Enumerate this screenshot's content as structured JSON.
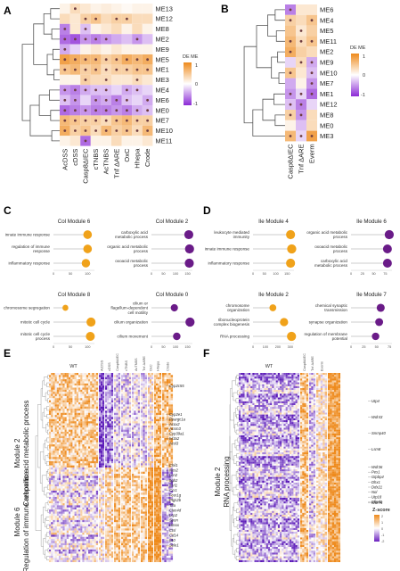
{
  "colors": {
    "low": "#8c2bd6",
    "mid": "#ffffff",
    "high": "#ee8a1c",
    "dot": "#6e3c40",
    "bubble_orange": "#f0a21a",
    "bubble_purple": "#6a1b88"
  },
  "panels": {
    "A": {
      "letter": "A",
      "legend": {
        "title": "DE ME",
        "ticks": [
          "1",
          "0",
          "-1"
        ]
      },
      "rows": [
        "ME13",
        "ME12",
        "ME8",
        "ME2",
        "ME9",
        "ME5",
        "ME1",
        "ME3",
        "ME4",
        "ME6",
        "ME0",
        "ME7",
        "ME10",
        "ME11"
      ],
      "cols": [
        "AcDSS",
        "cDSS",
        "Casp8ΔIEC",
        "cTNBS",
        "AcTNBS",
        "Tnf ΔARE",
        "OxC",
        "Hhepa",
        "Crode"
      ],
      "values": [
        [
          0.1,
          0.3,
          0.2,
          0.1,
          0.15,
          0.1,
          0.05,
          0.1,
          0.1
        ],
        [
          0.3,
          0.2,
          0.4,
          0.5,
          0.3,
          0.4,
          0.4,
          0.3,
          0.3
        ],
        [
          -0.6,
          0.2,
          -0.3,
          0.1,
          0.2,
          0.3,
          0.1,
          0.3,
          0.1
        ],
        [
          -0.7,
          -0.8,
          -0.5,
          -0.6,
          -0.5,
          -0.4,
          -0.3,
          -0.5,
          -0.3
        ],
        [
          -0.4,
          -0.2,
          0.1,
          0.2,
          0.1,
          0.2,
          0.1,
          0.1,
          0.1
        ],
        [
          0.8,
          0.7,
          0.6,
          0.6,
          0.4,
          0.5,
          0.7,
          0.6,
          0.7
        ],
        [
          0.5,
          0.6,
          0.4,
          0.5,
          0.3,
          0.4,
          0.4,
          0.5,
          0.5
        ],
        [
          0.1,
          0.1,
          0.4,
          0.3,
          0.3,
          0.2,
          0.2,
          0.3,
          0.2
        ],
        [
          -0.5,
          -0.6,
          -0.4,
          -0.3,
          -0.3,
          -0.2,
          -0.4,
          -0.3,
          -0.2
        ],
        [
          -0.3,
          -0.5,
          -0.2,
          -0.5,
          -0.4,
          -0.6,
          -0.3,
          -0.2,
          -0.4
        ],
        [
          -0.7,
          -0.6,
          -0.5,
          -0.6,
          -0.6,
          -0.5,
          -0.6,
          -0.4,
          -0.3
        ],
        [
          0.6,
          0.5,
          0.4,
          0.4,
          0.3,
          0.5,
          0.6,
          0.4,
          0.4
        ],
        [
          0.7,
          0.4,
          0.5,
          0.3,
          0.6,
          0.4,
          0.5,
          0.3,
          0.6
        ],
        [
          0.1,
          0.2,
          -0.7,
          0.1,
          0.1,
          0.3,
          0.1,
          0.1,
          0.2
        ]
      ],
      "dots": [
        [
          0,
          1,
          0,
          0,
          0,
          0,
          0,
          0,
          0
        ],
        [
          0,
          0,
          1,
          1,
          0,
          1,
          1,
          0,
          0
        ],
        [
          1,
          0,
          1,
          0,
          0,
          0,
          0,
          0,
          0
        ],
        [
          1,
          1,
          1,
          1,
          1,
          0,
          0,
          1,
          0
        ],
        [
          1,
          0,
          0,
          0,
          0,
          0,
          0,
          0,
          0
        ],
        [
          1,
          1,
          1,
          1,
          1,
          1,
          1,
          1,
          1
        ],
        [
          1,
          1,
          1,
          1,
          1,
          1,
          1,
          1,
          1
        ],
        [
          0,
          0,
          1,
          0,
          1,
          0,
          0,
          1,
          0
        ],
        [
          1,
          1,
          1,
          1,
          1,
          0,
          1,
          1,
          0
        ],
        [
          1,
          1,
          0,
          1,
          1,
          1,
          1,
          0,
          1
        ],
        [
          1,
          1,
          1,
          1,
          1,
          1,
          1,
          1,
          1
        ],
        [
          1,
          1,
          1,
          1,
          1,
          1,
          1,
          1,
          1
        ],
        [
          1,
          1,
          1,
          1,
          1,
          1,
          1,
          1,
          1
        ],
        [
          0,
          0,
          1,
          0,
          0,
          0,
          0,
          0,
          0
        ]
      ]
    },
    "B": {
      "letter": "B",
      "legend": {
        "title": "DE ME",
        "ticks": [
          "1",
          "0",
          "-1"
        ]
      },
      "rows": [
        "ME6",
        "ME4",
        "ME5",
        "ME11",
        "ME2",
        "ME9",
        "ME10",
        "ME7",
        "ME1",
        "ME12",
        "ME8",
        "ME0",
        "ME3"
      ],
      "cols": [
        "Casp8ΔIEC",
        "Tnf ΔARE",
        "Everm"
      ],
      "values": [
        [
          -0.6,
          0.2,
          0.2
        ],
        [
          0.4,
          0.3,
          0.5
        ],
        [
          0.5,
          0.2,
          0.4
        ],
        [
          0.6,
          0.3,
          0.5
        ],
        [
          0.7,
          0.4,
          0.3
        ],
        [
          -0.2,
          0.3,
          -0.4
        ],
        [
          0.5,
          0.2,
          -0.3
        ],
        [
          -0.4,
          0.1,
          -0.5
        ],
        [
          -0.5,
          -0.2,
          -0.7
        ],
        [
          -0.3,
          -0.6,
          -0.2
        ],
        [
          0.4,
          -0.5,
          0.3
        ],
        [
          0.1,
          -0.3,
          0.3
        ],
        [
          0.6,
          -0.2,
          0.8
        ]
      ],
      "dots": [
        [
          1,
          0,
          0
        ],
        [
          1,
          0,
          1
        ],
        [
          0,
          1,
          0
        ],
        [
          1,
          1,
          1
        ],
        [
          1,
          0,
          0
        ],
        [
          0,
          1,
          1
        ],
        [
          1,
          0,
          1
        ],
        [
          0,
          0,
          1
        ],
        [
          1,
          1,
          1
        ],
        [
          1,
          1,
          0
        ],
        [
          1,
          1,
          0
        ],
        [
          0,
          0,
          0
        ],
        [
          1,
          1,
          1
        ]
      ]
    },
    "C": {
      "letter": "C",
      "modules": [
        {
          "title": "Col Module 6",
          "terms": [
            "innate immune response",
            "regulation of immune response",
            "inflammatory response"
          ],
          "values": [
            100,
            100,
            95
          ],
          "color": "orange",
          "ticks": [
            "0",
            "50",
            "100"
          ],
          "max": 120
        },
        {
          "title": "Col Module 2",
          "terms": [
            "carboxylic acid metabolic process",
            "organic acid metabolic process",
            "oxoacid metabolic process"
          ],
          "values": [
            155,
            158,
            157
          ],
          "color": "purple",
          "ticks": [
            "0",
            "50",
            "100",
            "150"
          ],
          "max": 170
        },
        {
          "title": "Col Module 8",
          "terms": [
            "chromosome segregation",
            "mitotic cell cycle",
            "mitotic cell cycle process"
          ],
          "values": [
            35,
            110,
            108
          ],
          "color": "orange",
          "ticks": [
            "0",
            "50",
            "100"
          ],
          "max": 120
        },
        {
          "title": "Col Module 0",
          "terms": [
            "cilium or flagellum-dependent cell motility",
            "cilium organization",
            "cilium movement"
          ],
          "values": [
            95,
            160,
            105
          ],
          "color": "purple",
          "ticks": [
            "0",
            "50",
            "100",
            "150"
          ],
          "max": 170
        }
      ]
    },
    "D": {
      "letter": "D",
      "modules": [
        {
          "title": "Ile Module 4",
          "terms": [
            "leukocyte mediated immunity",
            "innate immune response",
            "inflammatory response"
          ],
          "values": [
            165,
            170,
            165
          ],
          "color": "orange",
          "ticks": [
            "0",
            "50",
            "100",
            "150"
          ],
          "max": 180
        },
        {
          "title": "Ile Module 6",
          "terms": [
            "organic acid metabolic process",
            "oxoacid metabolic process",
            "carboxylic acid metabolic process"
          ],
          "values": [
            84,
            80,
            80
          ],
          "color": "purple",
          "ticks": [
            "0",
            "25",
            "50",
            "75"
          ],
          "max": 90
        },
        {
          "title": "Ile Module 2",
          "terms": [
            "chromosome organization",
            "ribonucleoprotein complex biogenesis",
            "RNA processing"
          ],
          "values": [
            160,
            250,
            310
          ],
          "color": "orange",
          "ticks": [
            "0",
            "100",
            "200",
            "300"
          ],
          "max": 330
        },
        {
          "title": "Ile Module 7",
          "terms": [
            "chemical synaptic transmission",
            "synapse organization",
            "regulation of membrane potential"
          ],
          "values": [
            58,
            55,
            48
          ],
          "color": "purple",
          "ticks": [
            "0",
            "25",
            "50",
            "75"
          ],
          "max": 80
        }
      ]
    },
    "E": {
      "letter": "E",
      "cols": [
        "WT",
        "AcDSS",
        "cDSS",
        "Casp8ΔIEC",
        "cTNBS",
        "AcTNBS",
        "Tnf ΔARE",
        "OxC",
        "Hhepa",
        "Crode"
      ],
      "module_top": "Module 2",
      "module_top_desc": "Carboxilic acid metabolic process",
      "module_bottom": "Module 6",
      "module_bottom_desc": "Regulation of immune response",
      "genes_top": [
        "Cyp2c55",
        "Cyp2e1",
        "Ppargc1a",
        "Acox2",
        "Acsm3",
        "Cyp39a1",
        "Ivl3a2",
        "Acsl3"
      ],
      "genes_bottom": [
        "Chil1",
        "Nos2",
        "Lcn2",
        "Itgb2",
        "Il1rl1",
        "Ccr1",
        "Fcer1g",
        "Ptgs2b",
        "Tifa",
        "Clec4d",
        "Lcp2",
        "Spon",
        "Hmox",
        "Ctsl",
        "Cd14",
        "Il10",
        "Sele1"
      ]
    },
    "F": {
      "letter": "F",
      "cols": [
        "WT",
        "Casp8ΔIEC",
        "Tnf ΔARE",
        "Everm"
      ],
      "module": "Module 2",
      "module_desc": "RNA processing",
      "genes": [
        "Utp4",
        "Wdr43",
        "Snrnp40",
        "Lsm8",
        "Wdr36",
        "Pes1",
        "Gtpbp4",
        "Dhx1",
        "Ddx21",
        "Nol",
        "Utp18",
        "Eftud2",
        "Wdr75"
      ],
      "legend": {
        "title": "Z-score",
        "ticks": [
          "2",
          "1",
          "0",
          "-1",
          "-2"
        ]
      }
    }
  }
}
